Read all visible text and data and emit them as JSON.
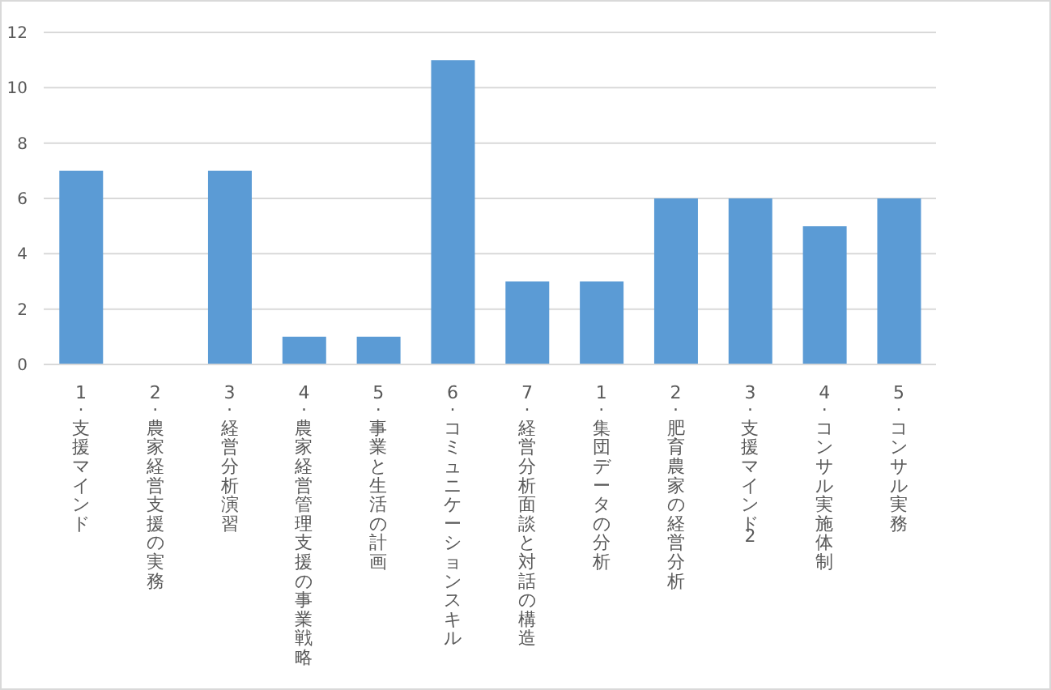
{
  "chart_data": {
    "type": "bar",
    "categories": [
      "1. 支援マインド",
      "2. 農家経営支援の実務",
      "3. 経営分析演習",
      "4. 農家経営管理支援の事業戦略",
      "5. 事業と生活の計画",
      "6. コミュニケーションスキル",
      "7. 経営分析面談と対話の構造",
      "1. 集団データの分析",
      "2. 肥育農家の経営分析",
      "3. 支援マインド2",
      "4. コンサル実施体制",
      "5. コンサル実務"
    ],
    "values": [
      7,
      0,
      7,
      1,
      1,
      11,
      3,
      3,
      6,
      6,
      5,
      6
    ],
    "color": "#5b9bd5",
    "ylim": [
      0,
      12
    ],
    "yticks": [
      0,
      2,
      4,
      6,
      8,
      10,
      12
    ],
    "grid": "y"
  }
}
